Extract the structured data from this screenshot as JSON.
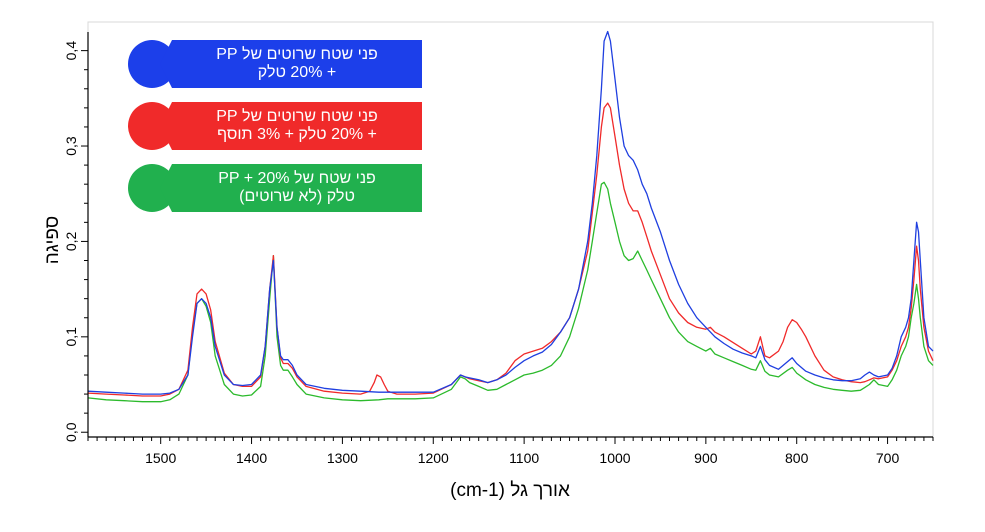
{
  "chart_data": {
    "type": "line",
    "xlabel": "אורך גל (cm-1)",
    "ylabel": "ספיגה",
    "xlim": [
      1580,
      650
    ],
    "ylim": [
      -0.005,
      0.43
    ],
    "x_ticks": [
      1500,
      1400,
      1300,
      1200,
      1100,
      1000,
      900,
      800,
      700
    ],
    "y_ticks": [
      "0,0",
      "0,1",
      "0,2",
      "0,3",
      "0,4"
    ],
    "y_tick_values": [
      0.0,
      0.1,
      0.2,
      0.3,
      0.4
    ],
    "series": [
      {
        "name": "פני שטח שרוטים של PP + 20% טלק",
        "color": "#1f3fe0",
        "x": [
          1580,
          1560,
          1540,
          1520,
          1500,
          1490,
          1480,
          1470,
          1465,
          1460,
          1455,
          1450,
          1445,
          1440,
          1430,
          1420,
          1410,
          1400,
          1390,
          1385,
          1380,
          1376,
          1372,
          1368,
          1365,
          1360,
          1355,
          1350,
          1340,
          1320,
          1300,
          1280,
          1260,
          1250,
          1240,
          1220,
          1200,
          1180,
          1170,
          1165,
          1160,
          1150,
          1140,
          1130,
          1120,
          1110,
          1100,
          1090,
          1080,
          1070,
          1060,
          1050,
          1040,
          1030,
          1025,
          1020,
          1015,
          1012,
          1008,
          1005,
          1000,
          995,
          990,
          985,
          980,
          975,
          970,
          965,
          960,
          950,
          940,
          930,
          920,
          910,
          900,
          895,
          890,
          880,
          870,
          860,
          850,
          845,
          840,
          835,
          830,
          820,
          810,
          805,
          800,
          790,
          780,
          770,
          760,
          750,
          740,
          730,
          725,
          720,
          715,
          710,
          700,
          695,
          690,
          685,
          680,
          677,
          674,
          671,
          668,
          666,
          664,
          660,
          655,
          650
        ],
        "y": [
          0.043,
          0.042,
          0.041,
          0.04,
          0.04,
          0.041,
          0.045,
          0.06,
          0.1,
          0.135,
          0.14,
          0.135,
          0.12,
          0.09,
          0.06,
          0.05,
          0.049,
          0.05,
          0.06,
          0.09,
          0.15,
          0.18,
          0.11,
          0.08,
          0.076,
          0.076,
          0.07,
          0.06,
          0.05,
          0.046,
          0.044,
          0.043,
          0.042,
          0.042,
          0.042,
          0.042,
          0.042,
          0.05,
          0.06,
          0.058,
          0.057,
          0.055,
          0.052,
          0.055,
          0.06,
          0.068,
          0.075,
          0.08,
          0.084,
          0.092,
          0.105,
          0.12,
          0.15,
          0.2,
          0.24,
          0.29,
          0.36,
          0.41,
          0.42,
          0.41,
          0.37,
          0.33,
          0.3,
          0.29,
          0.285,
          0.275,
          0.26,
          0.25,
          0.235,
          0.21,
          0.18,
          0.155,
          0.135,
          0.12,
          0.11,
          0.105,
          0.1,
          0.093,
          0.087,
          0.083,
          0.08,
          0.078,
          0.09,
          0.076,
          0.07,
          0.066,
          0.074,
          0.078,
          0.072,
          0.064,
          0.06,
          0.057,
          0.055,
          0.054,
          0.054,
          0.056,
          0.06,
          0.063,
          0.06,
          0.058,
          0.06,
          0.067,
          0.08,
          0.1,
          0.11,
          0.12,
          0.14,
          0.18,
          0.22,
          0.21,
          0.18,
          0.12,
          0.09,
          0.085
        ]
      },
      {
        "name": "פני שטח שרוטים של PP + 20% טלק + 3% תוסף",
        "color": "#f02a2a",
        "x": [
          1580,
          1560,
          1540,
          1520,
          1500,
          1490,
          1480,
          1470,
          1465,
          1460,
          1455,
          1450,
          1445,
          1440,
          1430,
          1420,
          1410,
          1400,
          1390,
          1385,
          1380,
          1376,
          1372,
          1368,
          1365,
          1360,
          1355,
          1350,
          1340,
          1320,
          1300,
          1280,
          1270,
          1265,
          1262,
          1258,
          1254,
          1250,
          1240,
          1220,
          1200,
          1180,
          1170,
          1165,
          1160,
          1150,
          1140,
          1130,
          1120,
          1110,
          1100,
          1090,
          1080,
          1070,
          1060,
          1050,
          1040,
          1030,
          1025,
          1020,
          1015,
          1012,
          1008,
          1005,
          1000,
          995,
          990,
          985,
          980,
          975,
          970,
          965,
          960,
          950,
          940,
          930,
          920,
          910,
          900,
          895,
          890,
          880,
          870,
          860,
          850,
          845,
          840,
          835,
          830,
          820,
          815,
          810,
          805,
          800,
          795,
          790,
          780,
          770,
          760,
          750,
          740,
          730,
          725,
          720,
          715,
          710,
          700,
          695,
          690,
          685,
          680,
          677,
          674,
          671,
          668,
          666,
          664,
          660,
          655,
          650
        ],
        "y": [
          0.041,
          0.04,
          0.039,
          0.038,
          0.038,
          0.04,
          0.045,
          0.065,
          0.11,
          0.145,
          0.15,
          0.145,
          0.128,
          0.095,
          0.062,
          0.05,
          0.048,
          0.048,
          0.058,
          0.09,
          0.15,
          0.185,
          0.11,
          0.078,
          0.072,
          0.072,
          0.067,
          0.058,
          0.048,
          0.043,
          0.041,
          0.04,
          0.043,
          0.052,
          0.06,
          0.058,
          0.05,
          0.043,
          0.04,
          0.04,
          0.041,
          0.05,
          0.06,
          0.058,
          0.056,
          0.054,
          0.052,
          0.055,
          0.062,
          0.075,
          0.082,
          0.085,
          0.088,
          0.095,
          0.105,
          0.12,
          0.15,
          0.19,
          0.23,
          0.27,
          0.32,
          0.34,
          0.345,
          0.34,
          0.31,
          0.28,
          0.255,
          0.24,
          0.232,
          0.232,
          0.22,
          0.205,
          0.19,
          0.165,
          0.14,
          0.125,
          0.115,
          0.11,
          0.108,
          0.11,
          0.105,
          0.1,
          0.094,
          0.088,
          0.082,
          0.085,
          0.1,
          0.08,
          0.078,
          0.085,
          0.095,
          0.11,
          0.118,
          0.115,
          0.108,
          0.1,
          0.08,
          0.065,
          0.058,
          0.055,
          0.053,
          0.052,
          0.053,
          0.055,
          0.057,
          0.056,
          0.058,
          0.065,
          0.075,
          0.09,
          0.1,
          0.11,
          0.13,
          0.16,
          0.195,
          0.18,
          0.15,
          0.11,
          0.085,
          0.075
        ]
      },
      {
        "name": "פני שטח של PP + 20% טלק (לא שרוטים)",
        "color": "#2cba2c",
        "x": [
          1580,
          1560,
          1540,
          1520,
          1500,
          1490,
          1480,
          1470,
          1465,
          1460,
          1455,
          1450,
          1445,
          1440,
          1430,
          1420,
          1410,
          1400,
          1390,
          1385,
          1380,
          1376,
          1372,
          1368,
          1365,
          1360,
          1355,
          1350,
          1340,
          1320,
          1300,
          1280,
          1260,
          1250,
          1240,
          1220,
          1200,
          1180,
          1170,
          1165,
          1160,
          1150,
          1140,
          1130,
          1120,
          1110,
          1100,
          1090,
          1080,
          1070,
          1060,
          1050,
          1040,
          1030,
          1025,
          1020,
          1015,
          1012,
          1008,
          1005,
          1000,
          995,
          990,
          985,
          980,
          975,
          970,
          965,
          960,
          950,
          940,
          930,
          920,
          910,
          900,
          895,
          890,
          880,
          870,
          860,
          850,
          845,
          840,
          835,
          830,
          820,
          810,
          805,
          800,
          790,
          780,
          770,
          760,
          750,
          740,
          730,
          725,
          720,
          715,
          710,
          700,
          695,
          690,
          685,
          680,
          677,
          674,
          671,
          668,
          666,
          664,
          660,
          655,
          650
        ],
        "y": [
          0.036,
          0.034,
          0.033,
          0.032,
          0.032,
          0.034,
          0.04,
          0.06,
          0.105,
          0.135,
          0.14,
          0.132,
          0.115,
          0.08,
          0.05,
          0.04,
          0.038,
          0.039,
          0.048,
          0.08,
          0.14,
          0.185,
          0.1,
          0.07,
          0.065,
          0.065,
          0.058,
          0.05,
          0.04,
          0.036,
          0.034,
          0.033,
          0.034,
          0.035,
          0.035,
          0.035,
          0.036,
          0.045,
          0.058,
          0.056,
          0.052,
          0.048,
          0.044,
          0.045,
          0.05,
          0.055,
          0.06,
          0.062,
          0.065,
          0.07,
          0.08,
          0.1,
          0.13,
          0.17,
          0.2,
          0.23,
          0.26,
          0.262,
          0.255,
          0.24,
          0.22,
          0.2,
          0.185,
          0.18,
          0.182,
          0.19,
          0.18,
          0.17,
          0.16,
          0.14,
          0.12,
          0.105,
          0.095,
          0.09,
          0.085,
          0.088,
          0.082,
          0.078,
          0.074,
          0.07,
          0.066,
          0.065,
          0.075,
          0.064,
          0.06,
          0.058,
          0.065,
          0.068,
          0.062,
          0.055,
          0.05,
          0.047,
          0.045,
          0.044,
          0.043,
          0.044,
          0.047,
          0.05,
          0.055,
          0.05,
          0.048,
          0.055,
          0.065,
          0.08,
          0.09,
          0.1,
          0.12,
          0.135,
          0.155,
          0.14,
          0.12,
          0.09,
          0.075,
          0.07
        ]
      }
    ],
    "legend": [
      {
        "line1": "פני שטח שרוטים של PP",
        "line2": "+ 20% טלק",
        "color": "#1c3fea"
      },
      {
        "line1": "פני שטח שרוטים של PP",
        "line2": "+ 20% טלק + 3% תוסף",
        "color": "#f02a2a"
      },
      {
        "line1": "פני שטח של PP + 20%",
        "line2": "טלק (לא שרוטים)",
        "color": "#21b04e"
      }
    ]
  }
}
